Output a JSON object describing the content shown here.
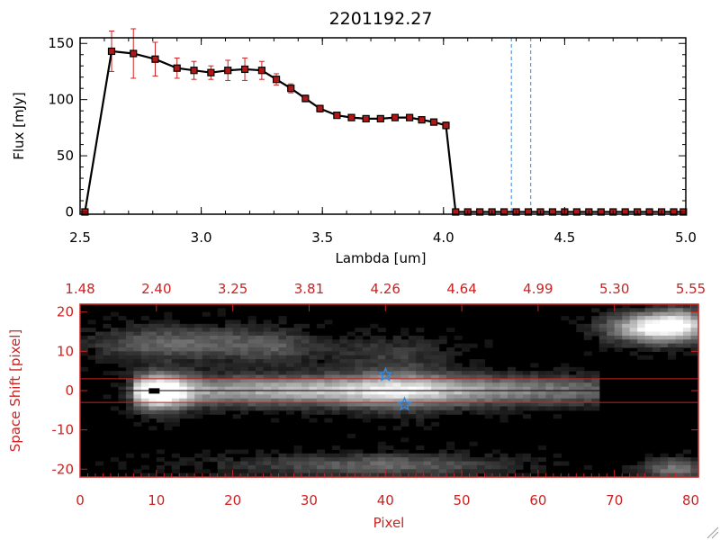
{
  "colors": {
    "top_axes": "#000000",
    "bottom_axes": "#cc2222",
    "error_bars": "#cc2222",
    "markers": "#b01818",
    "dashed_lines": "#3388dd",
    "star": "#3388dd"
  },
  "chart_data": [
    {
      "type": "line",
      "title": "2201192.27",
      "xlabel": "Lambda [um]",
      "ylabel": "Flux [mJy]",
      "xlim": [
        2.5,
        5.0
      ],
      "ylim": [
        -2,
        155
      ],
      "x_ticks": [
        "2.5",
        "3.0",
        "3.5",
        "4.0",
        "4.5",
        "5.0"
      ],
      "y_ticks": [
        "0",
        "50",
        "100",
        "150"
      ],
      "grid": false,
      "series": [
        {
          "x": [
            2.52,
            2.63,
            2.72,
            2.81,
            2.9,
            2.97,
            3.04,
            3.11,
            3.18,
            3.25,
            3.31,
            3.37,
            3.43,
            3.49,
            3.56,
            3.62,
            3.68,
            3.74,
            3.8,
            3.86,
            3.91,
            3.96,
            4.01,
            4.05,
            4.1,
            4.15,
            4.2,
            4.25,
            4.3,
            4.35,
            4.4,
            4.45,
            4.5,
            4.55,
            4.6,
            4.65,
            4.7,
            4.75,
            4.8,
            4.85,
            4.9,
            4.95,
            4.99
          ],
          "y": [
            0,
            143,
            141,
            136,
            128,
            126,
            124,
            126,
            127,
            126,
            118,
            110,
            101,
            92,
            86,
            84,
            83,
            83,
            84,
            84,
            82,
            80,
            77,
            0,
            0,
            0,
            0,
            0,
            0,
            0,
            0,
            0,
            0,
            0,
            0,
            0,
            0,
            0,
            0,
            0,
            0,
            0,
            0
          ],
          "err": [
            0,
            18,
            22,
            15,
            9,
            8,
            6,
            9,
            10,
            8,
            5,
            4,
            3,
            3,
            2,
            2,
            2,
            2,
            2,
            2,
            2,
            2,
            3,
            0,
            0,
            0,
            0,
            0,
            0,
            0,
            0,
            0,
            0,
            0,
            0,
            0,
            0,
            0,
            0,
            0,
            0,
            0,
            0
          ]
        }
      ],
      "vlines": [
        4.28,
        4.36
      ]
    },
    {
      "type": "heatmap",
      "xlabel": "Pixel",
      "ylabel": "Space Shift [pixel]",
      "xlim": [
        0,
        81
      ],
      "ylim": [
        -22,
        22
      ],
      "x_ticks": [
        "0",
        "10",
        "20",
        "30",
        "40",
        "50",
        "60",
        "70",
        "80"
      ],
      "y_ticks": [
        "-20",
        "-10",
        "0",
        "10",
        "20"
      ],
      "top_ticks": [
        "1.48",
        "2.40",
        "3.25",
        "3.81",
        "4.26",
        "4.64",
        "4.99",
        "5.30",
        "5.55"
      ],
      "hlines": [
        3,
        -3
      ],
      "stars": [
        {
          "x": 40,
          "y": 4
        },
        {
          "x": 42.5,
          "y": -3.5
        }
      ]
    }
  ]
}
